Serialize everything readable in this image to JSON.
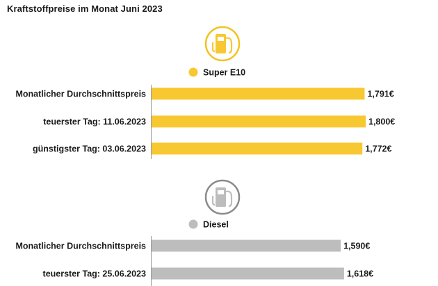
{
  "title": "Kraftstoffpreise im Monat Juni 2023",
  "chart_data": {
    "type": "bar",
    "orientation": "horizontal",
    "title": "Kraftstoffpreise im Monat Juni 2023",
    "xlim": [
      0,
      1.8
    ],
    "grid": false,
    "colors": {
      "Super E10": "#f8c832",
      "Diesel": "#bdbdbd"
    },
    "groups": [
      {
        "name": "Super E10",
        "color": "#f8c832",
        "icon": "fuel-pump-icon",
        "categories": [
          "Monatlicher Durchschnittspreis",
          "teuerster Tag: 11.06.2023",
          "günstigster Tag: 03.06.2023"
        ],
        "values": [
          1.791,
          1.8,
          1.772
        ],
        "value_labels": [
          "1,791€",
          "1,800€",
          "1,772€"
        ]
      },
      {
        "name": "Diesel",
        "color": "#bdbdbd",
        "icon": "fuel-pump-icon",
        "categories": [
          "Monatlicher Durchschnittspreis",
          "teuerster Tag: 25.06.2023"
        ],
        "values": [
          1.59,
          1.618
        ],
        "value_labels": [
          "1,590€",
          "1,618€"
        ]
      }
    ]
  }
}
